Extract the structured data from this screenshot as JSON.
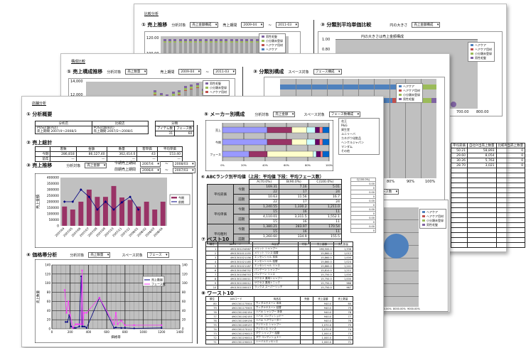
{
  "back_sheet": {
    "title": "比較分析",
    "sec1": {
      "title": "① 売上推移",
      "target_label": "分析対象",
      "target_value": "売上金額構成",
      "period_label": "売上期間",
      "period_from": "2009-04",
      "period_to": "2011-03",
      "yticks": [
        "120.00",
        "100.00"
      ],
      "legend": [
        "男性毛髪",
        "小分類未登録",
        "ヘアケア用材",
        "ヘアケア"
      ]
    },
    "sec3": {
      "title": "③ 分類別平均単価比較",
      "size_label": "円の大きさ",
      "size_value": "売上金額構成",
      "chart_title": "円の大きさは売上金額構成",
      "yticks": [
        "1.00",
        "0.80"
      ],
      "xticks": [
        "700.00",
        "800.00"
      ],
      "legend": [
        "ヘアケア",
        "ヘアケア用材",
        "小分類未登録",
        "男性毛髪"
      ]
    },
    "table": {
      "headers": [
        "平均売価",
        "自社PI当売上数量",
        "比較PI当売上数量"
      ],
      "rows": [
        [
          "50.21",
          "58,893",
          "0"
        ],
        [
          "29.60",
          "8,054",
          "0"
        ],
        [
          "30.26",
          "5,763",
          "0"
        ],
        [
          "28.70",
          "3,021",
          "0"
        ]
      ]
    }
  },
  "middle_sheet": {
    "title": "構成比較",
    "sec1": {
      "title": "① 売上構成推移",
      "target_label": "分析対象",
      "target_value": "売上数量",
      "period_label": "売上期間",
      "period_from": "2009-04",
      "period_to": "2011-03",
      "yticks": [
        "14,000",
        "12,000"
      ],
      "legend": [
        "男性毛髪",
        "小分類未登録",
        "ヘアケア用材"
      ]
    },
    "sec3": {
      "title": "③ 分類別構成",
      "space_label": "スペース対象",
      "space_value": "フェース構成",
      "xticks": [
        "80%",
        "90%",
        "100%"
      ],
      "legend": [
        "ヘアケア",
        "ヘアケア用材",
        "小分類未登録",
        "男性毛髪"
      ]
    },
    "bubble": {
      "select_value": "フェース数",
      "legend": [
        "ヘアケア",
        "ヘアケア用材",
        "小分類未登録",
        "男性毛髪"
      ],
      "xticks": [
        "7000.00%",
        "8000.00%",
        "9000.00%"
      ]
    }
  },
  "front_sheet": {
    "title": "店舗分析",
    "sec1": {
      "title": "① 分析概要",
      "col_store": "分析店",
      "col_compare": "比較店",
      "col_class": "分類",
      "store_line1": "POS店舗(A店)",
      "store_line2": "売上期間 2007/4〜2008/3",
      "compare_line1": "POS店舗(B店)",
      "compare_line2": "売上期間 2007/2〜2008/1",
      "class_a": "アイテム数",
      "class_b": "フェース数",
      "class_a_val": "31",
      "class_b_val": "60"
    },
    "sec2": {
      "title": "② 売上総計",
      "headers": [
        "客数",
        "金額",
        "数量",
        "客単価",
        "平均単価"
      ],
      "rows": [
        {
          "label": "今期",
          "values": [
            "286,818",
            "86,127,40",
            "362,414.0",
            "43",
            "153.40"
          ]
        },
        {
          "label": "前年",
          "values": [
            "—",
            "—",
            "—",
            "—",
            "—"
          ]
        }
      ]
    },
    "sec3": {
      "title": "③ 売上推移",
      "target_label": "分析対象",
      "target_value": "売上金額",
      "cur_label": "今期売上期間",
      "cur_from": "2007/4",
      "cur_to": "2008/03",
      "prev_label": "前期売上期間",
      "prev_from": "2006/4",
      "prev_to": "2007/03",
      "ylabel": "売上金額"
    },
    "sec4": {
      "title": "④ 価格帯分析",
      "target_label": "分析対象",
      "target_value": "売上数量",
      "space_label": "スペース対象",
      "space_value": "フェース",
      "xlabel": "価格帯",
      "ylabel": "売上数量"
    },
    "sec5": {
      "title": "⑤ メーカー別構成",
      "target_label": "分析対象",
      "target_value": "売上金額",
      "space_label": "スペース対象",
      "space_value": "フェース数構成",
      "legend": [
        "花王",
        "P&G",
        "資生堂",
        "ユニリーバ",
        "カネボウ化粧品",
        "ヘンケルジャパン",
        "マンダム",
        "その他"
      ],
      "row_labels": [
        "売上",
        "今期",
        "フェース"
      ]
    },
    "sec6": {
      "title": "⑥ ABCランク別平均値（上段：平均値 下段：平均フェース数）",
      "cols": [
        "A(70.0%)",
        "B(90.0%)",
        "C(100.0%)"
      ],
      "groups": [
        {
          "label": "平均売価",
          "rows": [
            {
              "sub": "今期",
              "vals": [
                "169.31",
                "7.16",
                "5.01"
              ],
              "faces": [
                "22",
                "17",
                "24"
              ]
            },
            {
              "sub": "前期",
              "vals": [
                "10.63",
                "11.56",
                "16.7"
              ],
              "faces": [
                "22",
                "17",
                "24"
              ]
            }
          ]
        },
        {
          "label": "平均単価",
          "rows": [
            {
              "sub": "今期",
              "vals": [
                "1,240.55",
                "1,330.2",
                "1,211.0"
              ],
              "faces": [
                "15",
                "16",
                "11"
              ]
            },
            {
              "sub": "前期",
              "vals": [
                "4,110.01",
                "3,311.5",
                "1,552.1"
              ],
              "faces": [
                "15",
                "16",
                "11"
              ]
            }
          ]
        },
        {
          "label": "平均粗利",
          "rows": [
            {
              "sub": "今期",
              "vals": [
                "1,380.21",
                "283.97",
                "170.54"
              ],
              "faces": [
                "15",
                "16",
                "11"
              ]
            },
            {
              "sub": "前期",
              "vals": [
                "1,260.60",
                "334.9",
                "155.5"
              ],
              "faces": []
            }
          ]
        }
      ],
      "side_header": "C(100.0%)",
      "side_vals": [
        "0.00",
        "0",
        "0.00",
        "0",
        "0.00",
        "0",
        "0.00",
        "0",
        "0.00",
        "0",
        "0.00",
        "0"
      ]
    },
    "sec7": {
      "title": "⑦ ベスト10",
      "headers": [
        "順位",
        "JANコード",
        "商品名",
        "売価",
        "売上金額",
        "売上数量"
      ],
      "rows": [
        [
          "1",
          "4901301234567",
          "メリット シャンプー",
          "",
          "198,500.0",
          "1,338"
        ],
        [
          "2",
          "4901301011155",
          "メリット リンス 詰替",
          "",
          "15,860.0",
          "1,012"
        ],
        [
          "3",
          "4901301021156",
          "エッセンシャル 本体",
          "",
          "15,860.0",
          "1,000"
        ],
        [
          "4",
          "4901301021185",
          "エッセンシャル 詰替",
          "",
          "15,860.0",
          "1,024"
        ],
        [
          "5",
          "4901301021187",
          "エッセンシャル リンス",
          "",
          "15,860.0",
          "1,241"
        ],
        [
          "6",
          "4901301056752",
          "パンテーン シャンプー",
          "",
          "15,810.0",
          "1,211"
        ],
        [
          "7",
          "4901301056753",
          "パンテーン リンス",
          "",
          "15,750.0",
          "1,000"
        ],
        [
          "8",
          "4901301100011",
          "サクセス 薬用シャンプー",
          "",
          "15,750.0",
          "1,000"
        ],
        [
          "9",
          "4901301100012",
          "サクセス 薬用トニック",
          "",
          "15,750.0",
          "986"
        ],
        [
          "10",
          "4901301100013",
          "ラックス スーパーリッチ",
          "",
          "15,750.0",
          "967"
        ]
      ]
    },
    "sec8": {
      "title": "⑧ ワースト10",
      "headers": [
        "順位",
        "JANコード",
        "商品名",
        "売価",
        "売上金額",
        "売上数量"
      ],
      "rows": [
        [
          "80",
          "4901301175504",
          "ヴィダルサスーン 本体",
          "",
          "940.0",
          "80"
        ],
        [
          "79",
          "4901301175505",
          "ヴィダルサスーン 詰替",
          "",
          "940.0",
          "79"
        ],
        [
          "78",
          "4901301162154",
          "ツバキ シャンプー 本体",
          "",
          "940.0",
          "78"
        ],
        [
          "77",
          "4901301162155",
          "ツバキ コンディショナー",
          "",
          "940.0",
          "77"
        ],
        [
          "76",
          "4901301169136",
          "ツバキ ヘアウォーター",
          "",
          "940.0",
          "76"
        ],
        [
          "75",
          "4901301169137",
          "アジエンス シャンプー",
          "",
          "1,070.0",
          "75"
        ],
        [
          "74",
          "4901301170112",
          "アジエンス リンス",
          "",
          "1,070.0",
          "74"
        ],
        [
          "73",
          "4901301190013",
          "ダヴ シャンプー 詰替",
          "",
          "1,000.0",
          "73"
        ],
        [
          "72",
          "4901301190014",
          "ダヴ コンディショナー",
          "",
          "1,000.0",
          "72"
        ],
        [
          "71",
          "4901301190015",
          "ハーバルエッセンス",
          "",
          "1,000.0",
          "71"
        ]
      ]
    }
  },
  "chart_data": [
    {
      "type": "bar",
      "title": "③ 売上推移",
      "categories": [
        "2007/04",
        "2007/05",
        "2007/06",
        "2007/07",
        "2007/08",
        "2007/09",
        "2007/10",
        "2007/11",
        "2007/12",
        "2008/01",
        "2008/02",
        "2008/03",
        "2008/04"
      ],
      "series": [
        {
          "name": "今期",
          "type": "bar",
          "values": [
            160000,
            135000,
            200000,
            300000,
            240000,
            240000,
            330000,
            235000,
            215000,
            160000,
            200000,
            135000,
            200000
          ]
        },
        {
          "name": "前期",
          "type": "line",
          "values": [
            200000,
            200000,
            300000,
            240000,
            135000,
            200000,
            135000,
            195000,
            240000,
            135000,
            null,
            null,
            null
          ]
        }
      ],
      "ylim": [
        0,
        400000
      ],
      "yticks": [
        0,
        50000,
        100000,
        150000,
        200000,
        250000,
        300000,
        350000,
        400000
      ],
      "ylabel": "売上金額"
    },
    {
      "type": "line",
      "title": "④ 価格帯分析",
      "xlim": [
        0,
        1400
      ],
      "ylim": [
        0,
        140
      ],
      "xticks": [
        0,
        200,
        400,
        600,
        800,
        1000,
        1200,
        1400
      ],
      "yticks": [
        0,
        20,
        40,
        60,
        80,
        100,
        120,
        140
      ],
      "xlabel": "価格帯",
      "ylabel": "売上数量",
      "series": [
        {
          "name": "売上数量",
          "x": [
            150,
            170,
            190,
            210,
            240,
            260,
            300,
            320,
            330,
            340,
            360,
            380,
            520,
            680,
            700,
            760,
            800,
            900,
            1200
          ],
          "y": [
            15,
            15,
            30,
            5,
            2,
            2,
            5,
            115,
            5,
            5,
            5,
            2,
            68,
            2,
            3,
            2,
            2,
            1,
            2
          ]
        },
        {
          "name": "フェース数",
          "x": [
            140,
            160,
            180,
            200,
            230,
            260,
            280,
            300,
            320,
            330,
            340,
            350,
            380,
            520,
            680,
            700,
            720,
            760,
            800,
            900,
            1200
          ],
          "y": [
            85,
            35,
            60,
            30,
            2,
            10,
            10,
            10,
            10,
            128,
            10,
            35,
            35,
            68,
            10,
            35,
            10,
            18,
            8,
            8,
            8
          ]
        }
      ]
    },
    {
      "type": "bar",
      "title": "⑤ メーカー別構成",
      "stacked": true,
      "categories": [
        "売上",
        "今期",
        "フェース"
      ],
      "xlim": [
        0,
        100
      ],
      "series": [
        {
          "name": "花王",
          "values": [
            42,
            42,
            25
          ]
        },
        {
          "name": "P&G",
          "values": [
            23,
            23,
            17
          ]
        },
        {
          "name": "資生堂",
          "values": [
            14,
            14,
            43
          ]
        },
        {
          "name": "ユニリーバ",
          "values": [
            8,
            8,
            3
          ]
        },
        {
          "name": "カネボウ化粧品",
          "values": [
            4,
            4,
            4
          ]
        },
        {
          "name": "ヘンケルジャパン",
          "values": [
            3,
            3,
            2
          ]
        },
        {
          "name": "その他",
          "values": [
            6,
            6,
            6
          ]
        }
      ]
    }
  ],
  "colors": {
    "bar": "#993366",
    "line": "#000080",
    "pink": "#ff33ff",
    "blue": "#4f81bd",
    "red": "#c0504d",
    "green": "#9bbb59",
    "purple": "#8064a2",
    "plot": "#c0c0c0"
  }
}
